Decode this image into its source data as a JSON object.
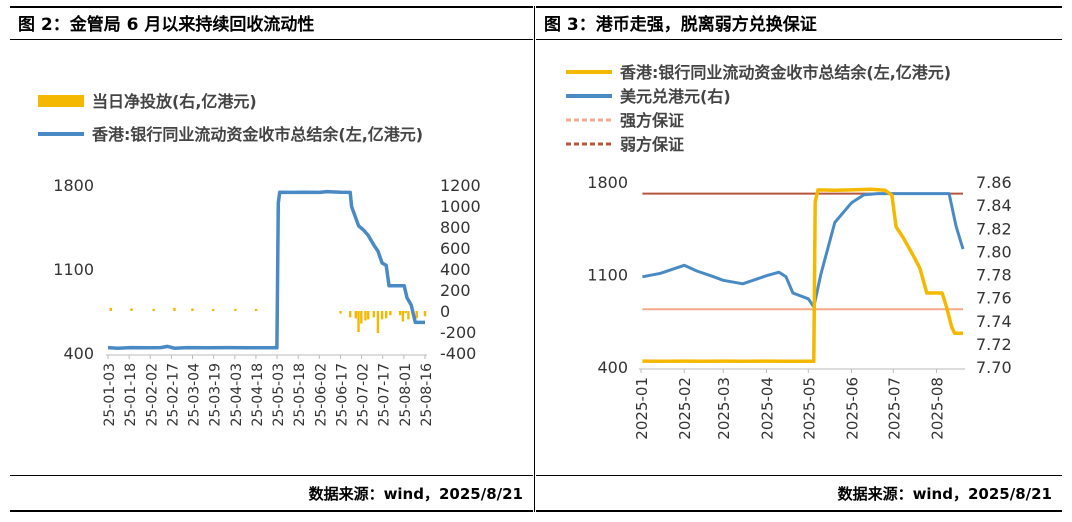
{
  "panels": {
    "left": {
      "title": "图 2：金管局 6 月以来持续回收流动性",
      "source": "数据来源：wind，2025/8/21"
    },
    "right": {
      "title": "图 3：港币走强，脱离弱方兑换保证",
      "source": "数据来源：wind，2025/8/21"
    }
  },
  "colors": {
    "blue": "#4a8ac4",
    "gold": "#f5b800",
    "pink": "#f4a98a",
    "brown": "#b5553a"
  },
  "chart_data": [
    {
      "type": "bar+line",
      "title": "",
      "legend": [
        "当日净投放(右,亿港元)",
        "香港:银行同业流动资金收市总结余(左,亿港元)"
      ],
      "legend_position": "top-left",
      "grid": false,
      "x_ticks": [
        "25-01-03",
        "25-01-18",
        "25-02-02",
        "25-02-17",
        "25-03-04",
        "25-03-19",
        "25-04-03",
        "25-04-18",
        "25-05-03",
        "25-05-18",
        "25-06-02",
        "25-06-17",
        "25-07-02",
        "25-07-17",
        "25-08-01",
        "25-08-16"
      ],
      "y_left": {
        "ticks": [
          "1800",
          "1100",
          "400"
        ],
        "range": [
          400,
          1800
        ]
      },
      "y_right": {
        "ticks": [
          "1200",
          "1000",
          "800",
          "600",
          "400",
          "200",
          "0",
          "-200",
          "-400"
        ],
        "range": [
          -400,
          1200
        ]
      },
      "series": [
        {
          "name": "香港:银行同业流动资金收市总结余(左,亿港元)",
          "axis": "left",
          "kind": "line",
          "x": [
            "2025-01-03",
            "2025-01-10",
            "2025-01-20",
            "2025-02-01",
            "2025-02-10",
            "2025-02-15",
            "2025-02-20",
            "2025-03-01",
            "2025-03-15",
            "2025-04-01",
            "2025-04-15",
            "2025-04-30",
            "2025-05-05",
            "2025-05-06",
            "2025-05-07",
            "2025-05-15",
            "2025-05-25",
            "2025-06-05",
            "2025-06-10",
            "2025-06-20",
            "2025-06-27",
            "2025-06-28",
            "2025-07-03",
            "2025-07-07",
            "2025-07-10",
            "2025-07-14",
            "2025-07-17",
            "2025-07-20",
            "2025-07-23",
            "2025-07-25",
            "2025-08-05",
            "2025-08-07",
            "2025-08-10",
            "2025-08-13",
            "2025-08-20"
          ],
          "values": [
            445,
            440,
            445,
            443,
            445,
            455,
            440,
            445,
            443,
            445,
            443,
            443,
            443,
            1650,
            1740,
            1738,
            1740,
            1738,
            1745,
            1740,
            1738,
            1620,
            1460,
            1420,
            1380,
            1300,
            1250,
            1150,
            1130,
            960,
            960,
            860,
            800,
            655,
            655
          ]
        },
        {
          "name": "当日净投放(右,亿港元)",
          "axis": "right",
          "kind": "bar",
          "x": [
            "2025-01-05",
            "2025-01-20",
            "2025-02-05",
            "2025-02-20",
            "2025-03-05",
            "2025-03-20",
            "2025-04-05",
            "2025-04-20",
            "2025-05-05",
            "2025-06-20",
            "2025-06-27",
            "2025-07-01",
            "2025-07-03",
            "2025-07-05",
            "2025-07-08",
            "2025-07-10",
            "2025-07-14",
            "2025-07-17",
            "2025-07-20",
            "2025-07-23",
            "2025-07-26",
            "2025-08-02",
            "2025-08-04",
            "2025-08-06",
            "2025-08-08",
            "2025-08-11",
            "2025-08-14",
            "2025-08-20"
          ],
          "values": [
            30,
            25,
            20,
            30,
            25,
            20,
            20,
            20,
            20,
            -25,
            -60,
            -70,
            -200,
            -120,
            -90,
            -80,
            -60,
            -210,
            -80,
            -70,
            -40,
            -40,
            -100,
            -20,
            -80,
            -30,
            -70,
            -50
          ]
        }
      ]
    },
    {
      "type": "line",
      "title": "",
      "legend": [
        "香港:银行同业流动资金收市总结余(左,亿港元)",
        "美元兑港元(右)",
        "强方保证",
        "弱方保证"
      ],
      "legend_position": "top-left",
      "grid": false,
      "x_ticks": [
        "2025-01",
        "2025-02",
        "2025-03",
        "2025-04",
        "2025-05",
        "2025-06",
        "2025-07",
        "2025-08"
      ],
      "y_left": {
        "ticks": [
          "1800",
          "1100",
          "400"
        ],
        "range": [
          400,
          1800
        ]
      },
      "y_right": {
        "ticks": [
          "7.86",
          "7.84",
          "7.82",
          "7.80",
          "7.78",
          "7.76",
          "7.74",
          "7.72",
          "7.70"
        ],
        "range": [
          7.7,
          7.86
        ]
      },
      "series": [
        {
          "name": "香港:银行同业流动资金收市总结余(左,亿港元)",
          "axis": "left",
          "kind": "line",
          "x": [
            "2025-01-02",
            "2025-01-15",
            "2025-02-01",
            "2025-02-15",
            "2025-03-01",
            "2025-03-15",
            "2025-04-01",
            "2025-04-15",
            "2025-05-01",
            "2025-05-05",
            "2025-05-06",
            "2025-05-08",
            "2025-05-20",
            "2025-06-01",
            "2025-06-15",
            "2025-06-25",
            "2025-06-30",
            "2025-07-03",
            "2025-07-08",
            "2025-07-15",
            "2025-07-20",
            "2025-07-25",
            "2025-08-05",
            "2025-08-08",
            "2025-08-12",
            "2025-08-14",
            "2025-08-20"
          ],
          "values": [
            445,
            443,
            445,
            443,
            445,
            443,
            445,
            443,
            443,
            443,
            1650,
            1740,
            1738,
            1740,
            1745,
            1738,
            1700,
            1460,
            1380,
            1250,
            1150,
            960,
            960,
            860,
            700,
            655,
            655
          ]
        },
        {
          "name": "美元兑港元(右)",
          "axis": "right",
          "kind": "line",
          "x": [
            "2025-01-02",
            "2025-01-15",
            "2025-02-01",
            "2025-02-10",
            "2025-02-20",
            "2025-03-01",
            "2025-03-15",
            "2025-03-25",
            "2025-04-01",
            "2025-04-10",
            "2025-04-15",
            "2025-04-20",
            "2025-05-01",
            "2025-05-05",
            "2025-05-10",
            "2025-05-20",
            "2025-06-01",
            "2025-06-10",
            "2025-06-20",
            "2025-07-01",
            "2025-07-15",
            "2025-08-01",
            "2025-08-10",
            "2025-08-15",
            "2025-08-20"
          ],
          "values": [
            7.778,
            7.781,
            7.788,
            7.783,
            7.779,
            7.775,
            7.772,
            7.776,
            7.779,
            7.782,
            7.778,
            7.764,
            7.759,
            7.752,
            7.78,
            7.825,
            7.842,
            7.849,
            7.85,
            7.85,
            7.85,
            7.85,
            7.85,
            7.822,
            7.802
          ]
        },
        {
          "name": "强方保证",
          "axis": "right",
          "kind": "line",
          "x": [
            "2025-01-02",
            "2025-08-20"
          ],
          "values": [
            7.75,
            7.75
          ]
        },
        {
          "name": "弱方保证",
          "axis": "right",
          "kind": "line",
          "x": [
            "2025-01-02",
            "2025-08-20"
          ],
          "values": [
            7.85,
            7.85
          ]
        }
      ]
    }
  ]
}
